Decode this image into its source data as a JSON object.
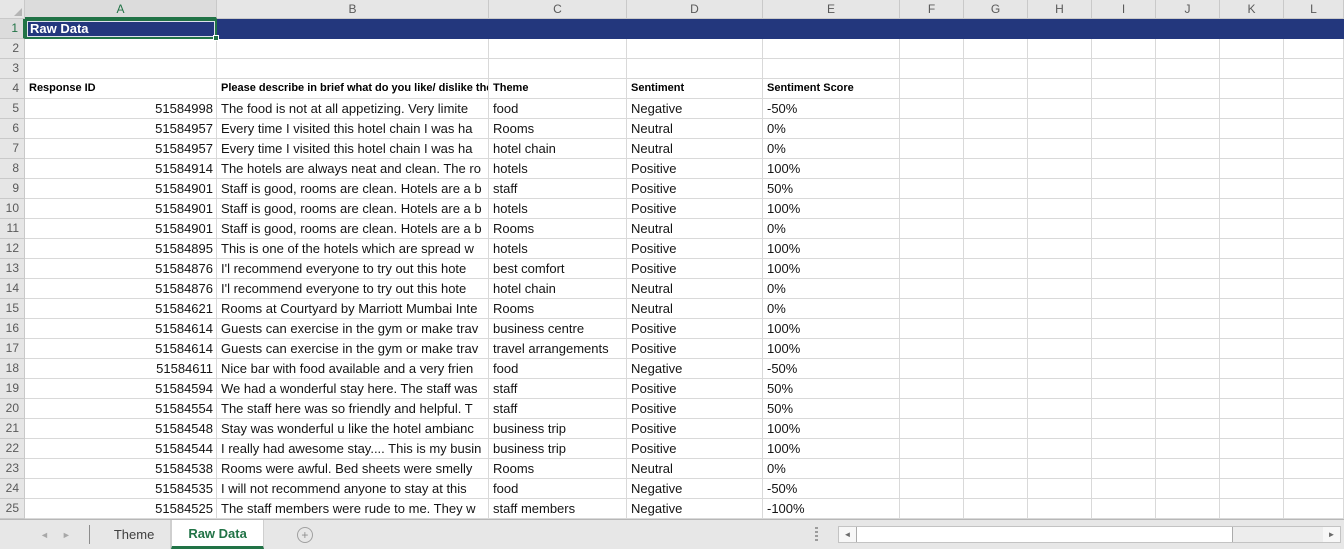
{
  "colors": {
    "selection_green": "#217346",
    "title_row_fill": "#23377D",
    "title_text": "#FFFFFF",
    "header_bg": "#E6E6E6",
    "gridline": "#D9D9D9"
  },
  "grid": {
    "column_letters": [
      "A",
      "B",
      "C",
      "D",
      "E",
      "F",
      "G",
      "H",
      "I",
      "J",
      "K",
      "L"
    ],
    "row_count": 25,
    "selected_cell": "A1",
    "title_cell_value": "Raw Data",
    "table_header_row": 4,
    "table_headers": [
      "Response ID",
      "Please describe in brief what do you like/ dislike the most a",
      "Theme",
      "Sentiment",
      "Sentiment Score"
    ],
    "data_start_row": 5,
    "data_rows": [
      [
        "51584998",
        "The food is not at all appetizing. Very limite",
        "food",
        "Negative",
        "-50%"
      ],
      [
        "51584957",
        "Every time I visited this hotel chain I was ha",
        "Rooms",
        "Neutral",
        "0%"
      ],
      [
        "51584957",
        "Every time I visited this hotel chain I was ha",
        "hotel chain",
        "Neutral",
        "0%"
      ],
      [
        "51584914",
        "The hotels are always neat and clean. The ro",
        "hotels",
        "Positive",
        "100%"
      ],
      [
        "51584901",
        "Staff is good, rooms are clean. Hotels are a b",
        "staff",
        "Positive",
        "50%"
      ],
      [
        "51584901",
        "Staff is good, rooms are clean. Hotels are a b",
        "hotels",
        "Positive",
        "100%"
      ],
      [
        "51584901",
        "Staff is good, rooms are clean. Hotels are a b",
        "Rooms",
        "Neutral",
        "0%"
      ],
      [
        "51584895",
        "This is one of the hotels which are spread w",
        "hotels",
        "Positive",
        "100%"
      ],
      [
        "51584876",
        "I'l recommend everyone to try out this hote",
        "best comfort",
        "Positive",
        "100%"
      ],
      [
        "51584876",
        "I'l recommend everyone to try out this hote",
        "hotel chain",
        "Neutral",
        "0%"
      ],
      [
        "51584621",
        "Rooms at Courtyard by Marriott Mumbai Inte",
        "Rooms",
        "Neutral",
        "0%"
      ],
      [
        "51584614",
        "Guests can exercise in the gym or make trav",
        "business centre",
        "Positive",
        "100%"
      ],
      [
        "51584614",
        "Guests can exercise in the gym or make trav",
        "travel arrangements",
        "Positive",
        "100%"
      ],
      [
        "51584611",
        "Nice bar with food available and a very frien",
        "food",
        "Negative",
        "-50%"
      ],
      [
        "51584594",
        "We had a wonderful stay here. The staff was",
        "staff",
        "Positive",
        "50%"
      ],
      [
        "51584554",
        "The staff here was so friendly and helpful. T",
        "staff",
        "Positive",
        "50%"
      ],
      [
        "51584548",
        "Stay was wonderful u like the hotel ambianc",
        "business trip",
        "Positive",
        "100%"
      ],
      [
        "51584544",
        "I really had awesome stay.... This is my busin",
        "business trip",
        "Positive",
        "100%"
      ],
      [
        "51584538",
        "Rooms were awful. Bed sheets were smelly",
        "Rooms",
        "Neutral",
        "0%"
      ],
      [
        "51584535",
        "I will not recommend anyone to stay at this",
        "food",
        "Negative",
        "-50%"
      ],
      [
        "51584525",
        "The staff members were rude to me. They w",
        "staff members",
        "Negative",
        "-100%"
      ]
    ]
  },
  "sheet_bar": {
    "tabs": [
      {
        "label": "Theme",
        "active": false
      },
      {
        "label": "Raw Data",
        "active": true
      }
    ],
    "add_sheet_label": "+",
    "icons": {
      "nav_left": "◄",
      "nav_right": "►",
      "scroll_left": "◄",
      "scroll_right": "►"
    }
  }
}
